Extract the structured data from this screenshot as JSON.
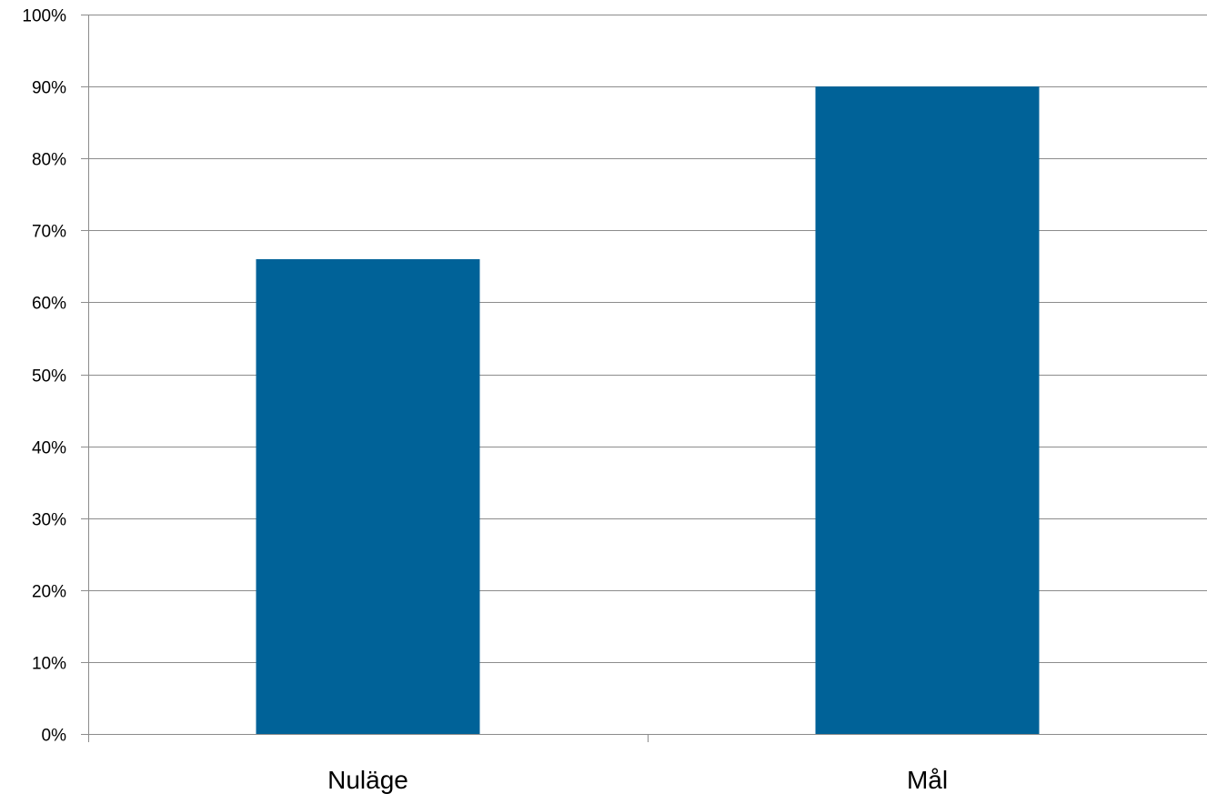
{
  "chart_data": {
    "type": "bar",
    "categories": [
      "Nuläge",
      "Mål"
    ],
    "values": [
      0.66,
      0.9
    ],
    "ylim": [
      0,
      1
    ],
    "y_ticks": [
      0,
      0.1,
      0.2,
      0.3,
      0.4,
      0.5,
      0.6,
      0.7,
      0.8,
      0.9,
      1.0
    ],
    "y_tick_labels": [
      "0%",
      "10%",
      "20%",
      "30%",
      "40%",
      "50%",
      "60%",
      "70%",
      "80%",
      "90%",
      "100%"
    ],
    "title": "",
    "xlabel": "",
    "ylabel": "",
    "grid": true,
    "legend": "none",
    "bar_color": "#006298",
    "grid_color": "#8c8c8c"
  }
}
